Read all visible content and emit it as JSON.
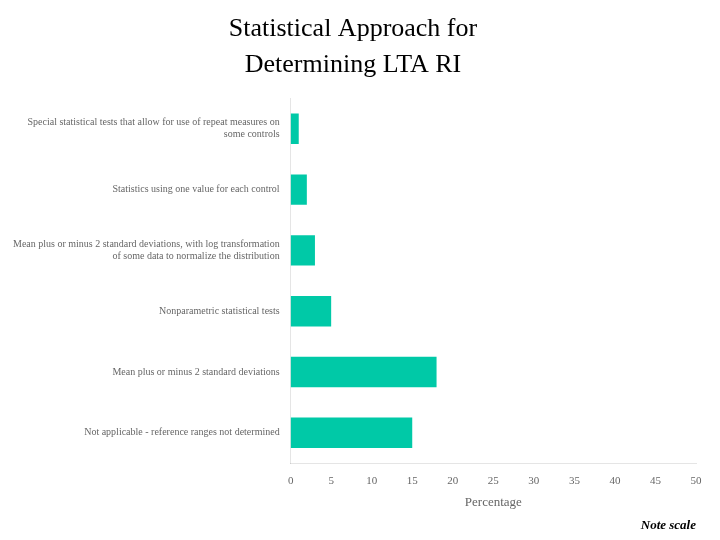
{
  "chart_data": {
    "type": "bar",
    "orientation": "horizontal",
    "title": "Statistical Approach for",
    "subtitle": "Determining LTA RI",
    "categories": [
      "Not applicable - reference ranges not determined",
      "Mean plus or minus 2 standard deviations",
      "Nonparametric statistical tests",
      "Mean plus or minus 2 standard deviations, with log transformation\nof some data to normalize the distribution",
      "Statistics using one value for each control",
      "Special statistical tests that allow for use of repeat measures on\nsome controls"
    ],
    "values": [
      15,
      18,
      5,
      3,
      2,
      1
    ],
    "color": "#00C9A7",
    "xlabel": "Percentage",
    "xlim": [
      0,
      50
    ],
    "xticks": [
      0,
      5,
      10,
      15,
      20,
      25,
      30,
      35,
      40,
      45,
      50
    ],
    "grid": false,
    "annotations": [
      "Note scale"
    ]
  }
}
